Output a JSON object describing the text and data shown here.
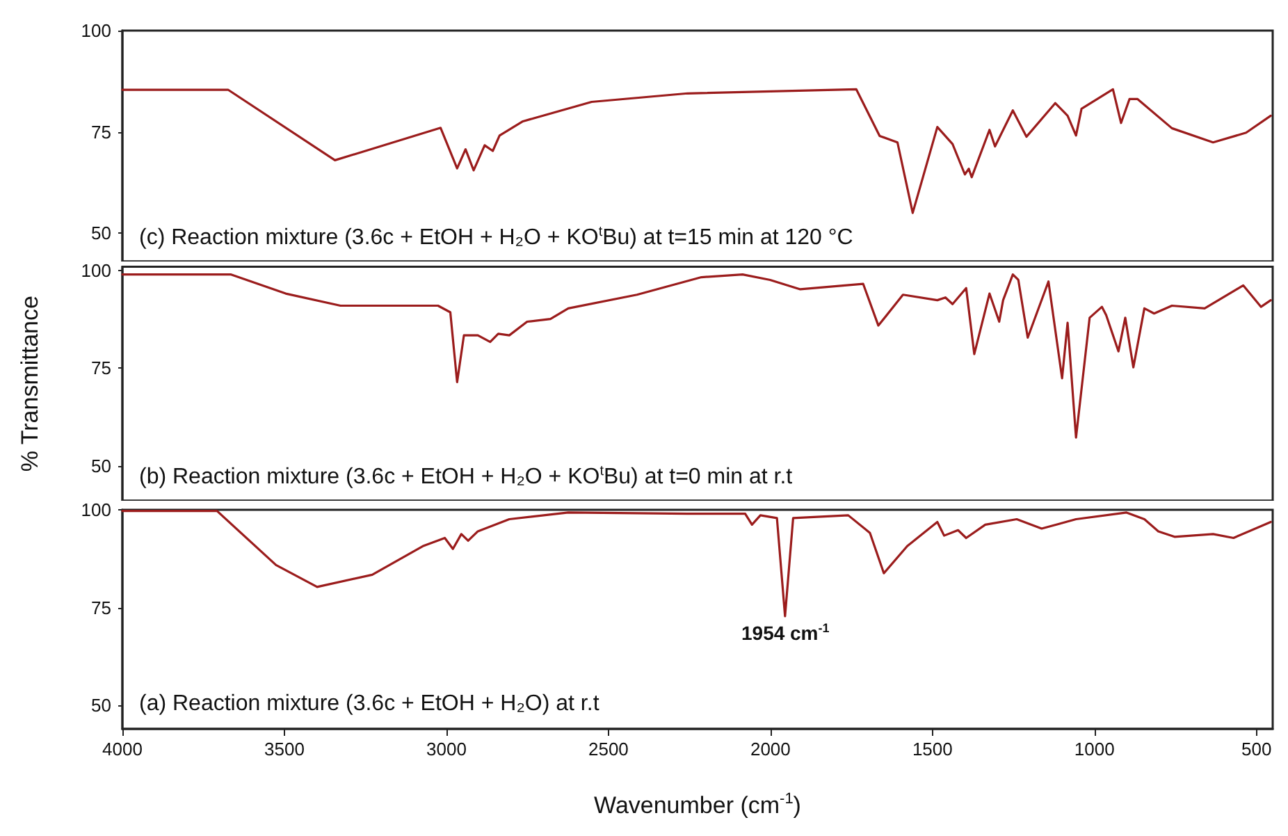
{
  "chart_data": [
    {
      "type": "line",
      "title": "(c) Reaction mixture (3.6c + EtOH + H₂O + KO$^{t}$Bu) at t=15 min at 120 °C",
      "color": "#9b1c1c",
      "marker": "none",
      "tick_labels": "y",
      "xlim": [
        4000,
        450
      ],
      "xticks": [
        4000,
        3500,
        3000,
        2500,
        2000,
        1500,
        1000,
        500
      ],
      "ylim": [
        43,
        100
      ],
      "yticks": [
        50,
        75,
        100
      ],
      "x": [
        4000,
        3674,
        3344,
        3018,
        2967,
        2941,
        2916,
        2882,
        2857,
        2836,
        2764,
        2552,
        2256,
        1735,
        1663,
        1608,
        1561,
        1485,
        1438,
        1400,
        1388,
        1379,
        1324,
        1307,
        1252,
        1210,
        1121,
        1083,
        1057,
        1040,
        943,
        918,
        892,
        867,
        761,
        634,
        532,
        456
      ],
      "values": [
        85.4,
        85.4,
        68,
        76,
        66,
        70.7,
        65.5,
        71.7,
        70.3,
        74.1,
        77.6,
        82.4,
        84.5,
        85.5,
        74,
        72.4,
        55,
        76.2,
        72,
        64.5,
        65.9,
        63.8,
        75.5,
        71.4,
        80.3,
        73.8,
        82.1,
        79,
        74.1,
        80.7,
        85.5,
        77.2,
        83.1,
        83.1,
        75.9,
        72.4,
        74.8,
        79
      ]
    },
    {
      "type": "line",
      "title": "(b) Reaction mixture (3.6c + EtOH + H₂O + KO$^{t}$Bu) at t=0 min at r.t",
      "ylabel": "% Transmittance",
      "color": "#9b1c1c",
      "marker": "none",
      "tick_labels": "y",
      "xlim": [
        4000,
        450
      ],
      "xticks": [
        4000,
        3500,
        3000,
        2500,
        2000,
        1500,
        1000,
        500
      ],
      "ylim": [
        41,
        101
      ],
      "yticks": [
        50,
        75,
        100
      ],
      "x": [
        4000,
        3666,
        3496,
        3327,
        3026,
        2988,
        2967,
        2946,
        2903,
        2865,
        2840,
        2806,
        2751,
        2679,
        2624,
        2412,
        2213,
        2086,
        2001,
        1908,
        1714,
        1667,
        1591,
        1485,
        1460,
        1438,
        1396,
        1371,
        1324,
        1294,
        1282,
        1252,
        1235,
        1206,
        1142,
        1100,
        1083,
        1057,
        1015,
        977,
        964,
        926,
        905,
        880,
        846,
        816,
        761,
        660,
        541,
        486,
        456
      ],
      "values": [
        99,
        99,
        94.1,
        91,
        91,
        89.3,
        71.4,
        83.4,
        83.4,
        81.7,
        83.8,
        83.4,
        86.9,
        87.6,
        90.3,
        93.8,
        98.3,
        99,
        97.6,
        95.2,
        96.6,
        85.9,
        93.8,
        92.4,
        93.1,
        91.4,
        95.5,
        78.6,
        94.1,
        86.9,
        92.4,
        99,
        97.6,
        82.8,
        97.2,
        72.4,
        86.6,
        57.2,
        87.9,
        90.7,
        88.6,
        79.3,
        87.9,
        75.2,
        90.3,
        89,
        91,
        90.3,
        96.2,
        90.7,
        92.4
      ]
    },
    {
      "type": "line",
      "title": "(a) Reaction mixture (3.6c + EtOH + H₂O) at r.t",
      "xlabel": "Wavenumber (cm$^{-1}$)",
      "color": "#9b1c1c",
      "marker": "none",
      "xlim": [
        4000,
        450
      ],
      "xticks": [
        4000,
        3500,
        3000,
        2500,
        2000,
        1500,
        1000,
        500
      ],
      "ylim": [
        44,
        100
      ],
      "yticks": [
        50,
        75,
        100
      ],
      "annotations": [
        {
          "text": "1954 cm$^{-1}$",
          "x": 1954,
          "y": 72.8
        }
      ],
      "x": [
        4000,
        3708,
        3526,
        3399,
        3229,
        3073,
        3005,
        2980,
        2954,
        2933,
        2903,
        2806,
        2624,
        2256,
        2078,
        2057,
        2031,
        1980,
        1955,
        1930,
        1760,
        1693,
        1650,
        1578,
        1485,
        1464,
        1421,
        1396,
        1337,
        1240,
        1163,
        1057,
        901,
        846,
        803,
        753,
        634,
        571,
        456
      ],
      "values": [
        99.7,
        99.7,
        85.9,
        80.3,
        83.4,
        90.7,
        92.8,
        90,
        93.8,
        92.1,
        94.5,
        97.6,
        99.3,
        99,
        99,
        96.2,
        98.6,
        97.9,
        72.8,
        97.9,
        98.6,
        94.1,
        83.8,
        90.7,
        96.9,
        93.4,
        94.8,
        92.8,
        96.2,
        97.6,
        95.2,
        97.6,
        99.3,
        97.6,
        94.5,
        93.1,
        93.8,
        92.8,
        96.9
      ]
    }
  ]
}
